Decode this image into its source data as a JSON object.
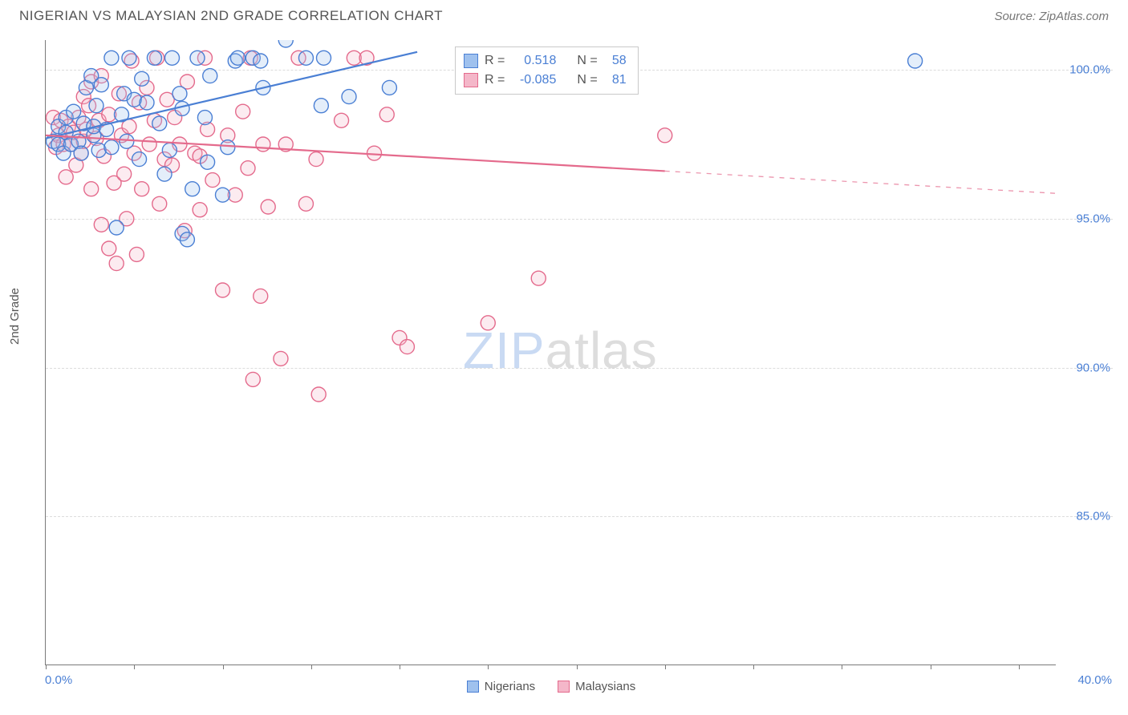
{
  "header": {
    "title": "NIGERIAN VS MALAYSIAN 2ND GRADE CORRELATION CHART",
    "source": "Source: ZipAtlas.com"
  },
  "watermark": {
    "part1": "ZIP",
    "part2": "atlas"
  },
  "chart": {
    "type": "scatter",
    "ylabel": "2nd Grade",
    "xlim": [
      0,
      40
    ],
    "ylim": [
      80,
      101
    ],
    "x_tick_positions": [
      0,
      3.5,
      7,
      10.5,
      14,
      17.5,
      21,
      24.5,
      28,
      31.5,
      35,
      38.5
    ],
    "x_tick_labels_shown": {
      "left": "0.0%",
      "right": "40.0%"
    },
    "y_ticks": [
      85,
      90,
      95,
      100
    ],
    "y_tick_labels": [
      "85.0%",
      "90.0%",
      "95.0%",
      "100.0%"
    ],
    "grid_color": "#dcdcdc",
    "axis_color": "#7a7a7a",
    "background_color": "#ffffff",
    "marker_radius": 9,
    "marker_stroke_width": 1.4,
    "marker_fill_opacity": 0.28,
    "trend_line_width": 2.2,
    "series": [
      {
        "name": "Nigerians",
        "color_stroke": "#4a7fd4",
        "color_fill": "#9fc1ee",
        "R": 0.518,
        "N": 58,
        "trend": {
          "x0": 0,
          "y0": 97.7,
          "x1_solid": 14.7,
          "y1_solid": 100.6,
          "x1_dash": 14.7,
          "y1_dash": 100.6
        },
        "points": [
          [
            0.3,
            97.6
          ],
          [
            0.5,
            98.1
          ],
          [
            0.5,
            97.5
          ],
          [
            0.7,
            97.2
          ],
          [
            0.8,
            97.9
          ],
          [
            0.8,
            98.4
          ],
          [
            1.0,
            97.5
          ],
          [
            1.1,
            98.6
          ],
          [
            1.3,
            97.6
          ],
          [
            1.4,
            97.2
          ],
          [
            1.5,
            98.2
          ],
          [
            1.6,
            99.4
          ],
          [
            1.8,
            99.8
          ],
          [
            1.9,
            97.8
          ],
          [
            2.0,
            98.8
          ],
          [
            1.9,
            98.1
          ],
          [
            2.1,
            97.3
          ],
          [
            2.2,
            99.5
          ],
          [
            2.4,
            98.0
          ],
          [
            2.6,
            97.4
          ],
          [
            2.6,
            100.4
          ],
          [
            2.8,
            94.7
          ],
          [
            3.0,
            98.5
          ],
          [
            3.1,
            99.2
          ],
          [
            3.2,
            97.6
          ],
          [
            3.3,
            100.4
          ],
          [
            3.5,
            99.0
          ],
          [
            3.7,
            97.0
          ],
          [
            3.8,
            99.7
          ],
          [
            4.0,
            98.9
          ],
          [
            4.3,
            100.4
          ],
          [
            4.5,
            98.2
          ],
          [
            4.7,
            96.5
          ],
          [
            4.9,
            97.3
          ],
          [
            5.0,
            100.4
          ],
          [
            5.3,
            99.2
          ],
          [
            5.4,
            98.7
          ],
          [
            5.4,
            94.5
          ],
          [
            5.6,
            94.3
          ],
          [
            5.8,
            96.0
          ],
          [
            6.0,
            100.4
          ],
          [
            6.3,
            98.4
          ],
          [
            6.4,
            96.9
          ],
          [
            6.5,
            99.8
          ],
          [
            7.0,
            95.8
          ],
          [
            7.2,
            97.4
          ],
          [
            7.5,
            100.3
          ],
          [
            7.6,
            100.4
          ],
          [
            8.2,
            100.4
          ],
          [
            8.5,
            100.3
          ],
          [
            8.6,
            99.4
          ],
          [
            9.5,
            101.0
          ],
          [
            10.3,
            100.4
          ],
          [
            10.9,
            98.8
          ],
          [
            11.0,
            100.4
          ],
          [
            12.0,
            99.1
          ],
          [
            13.6,
            99.4
          ],
          [
            34.4,
            100.3
          ]
        ]
      },
      {
        "name": "Malaysians",
        "color_stroke": "#e46a8c",
        "color_fill": "#f4b7c9",
        "R": -0.085,
        "N": 81,
        "trend": {
          "x0": 0,
          "y0": 97.8,
          "x1_solid": 24.5,
          "y1_solid": 96.6,
          "x1_dash": 40.0,
          "y1_dash": 95.85
        },
        "points": [
          [
            0.3,
            98.4
          ],
          [
            0.4,
            97.4
          ],
          [
            0.5,
            97.8
          ],
          [
            0.6,
            98.3
          ],
          [
            0.7,
            97.5
          ],
          [
            0.8,
            96.4
          ],
          [
            0.9,
            98.1
          ],
          [
            1.0,
            97.5
          ],
          [
            1.1,
            97.9
          ],
          [
            1.2,
            96.8
          ],
          [
            1.3,
            98.4
          ],
          [
            1.4,
            97.2
          ],
          [
            1.5,
            99.1
          ],
          [
            1.5,
            97.6
          ],
          [
            1.6,
            98.0
          ],
          [
            1.7,
            98.8
          ],
          [
            1.8,
            96.0
          ],
          [
            1.8,
            99.6
          ],
          [
            2.0,
            97.7
          ],
          [
            2.1,
            98.3
          ],
          [
            2.2,
            94.8
          ],
          [
            2.2,
            99.8
          ],
          [
            2.3,
            97.1
          ],
          [
            2.5,
            94.0
          ],
          [
            2.5,
            98.5
          ],
          [
            2.7,
            96.2
          ],
          [
            2.8,
            93.5
          ],
          [
            2.9,
            99.2
          ],
          [
            3.0,
            97.8
          ],
          [
            3.1,
            96.5
          ],
          [
            3.2,
            95.0
          ],
          [
            3.3,
            98.1
          ],
          [
            3.4,
            100.3
          ],
          [
            3.5,
            97.2
          ],
          [
            3.6,
            93.8
          ],
          [
            3.7,
            98.9
          ],
          [
            3.8,
            96.0
          ],
          [
            4.0,
            99.4
          ],
          [
            4.1,
            97.5
          ],
          [
            4.3,
            98.3
          ],
          [
            4.4,
            100.4
          ],
          [
            4.5,
            95.5
          ],
          [
            4.7,
            97.0
          ],
          [
            4.8,
            99.0
          ],
          [
            5.0,
            96.8
          ],
          [
            5.1,
            98.4
          ],
          [
            5.3,
            97.5
          ],
          [
            5.5,
            94.6
          ],
          [
            5.6,
            99.6
          ],
          [
            5.9,
            97.2
          ],
          [
            6.1,
            97.1
          ],
          [
            6.1,
            95.3
          ],
          [
            6.3,
            100.4
          ],
          [
            6.4,
            98.0
          ],
          [
            6.6,
            96.3
          ],
          [
            7.0,
            92.6
          ],
          [
            7.2,
            97.8
          ],
          [
            7.5,
            95.8
          ],
          [
            7.8,
            98.6
          ],
          [
            8.0,
            96.7
          ],
          [
            8.1,
            100.4
          ],
          [
            8.2,
            89.6
          ],
          [
            8.6,
            97.5
          ],
          [
            8.8,
            95.4
          ],
          [
            8.5,
            92.4
          ],
          [
            9.3,
            90.3
          ],
          [
            9.5,
            97.5
          ],
          [
            10.0,
            100.4
          ],
          [
            10.3,
            95.5
          ],
          [
            10.7,
            97.0
          ],
          [
            10.8,
            89.1
          ],
          [
            11.7,
            98.3
          ],
          [
            12.2,
            100.4
          ],
          [
            12.7,
            100.4
          ],
          [
            13.0,
            97.2
          ],
          [
            13.5,
            98.5
          ],
          [
            14.0,
            91.0
          ],
          [
            14.3,
            90.7
          ],
          [
            17.5,
            91.5
          ],
          [
            19.5,
            93.0
          ],
          [
            24.5,
            97.8
          ]
        ]
      }
    ]
  },
  "stats_box": {
    "rows": [
      {
        "swatch": 0,
        "R_label": "R =",
        "R_val": "0.518",
        "N_label": "N =",
        "N_val": "58"
      },
      {
        "swatch": 1,
        "R_label": "R =",
        "R_val": "-0.085",
        "N_label": "N =",
        "N_val": "81"
      }
    ]
  },
  "bottom_legend": {
    "items": [
      {
        "swatch": 0,
        "label": "Nigerians"
      },
      {
        "swatch": 1,
        "label": "Malaysians"
      }
    ]
  }
}
